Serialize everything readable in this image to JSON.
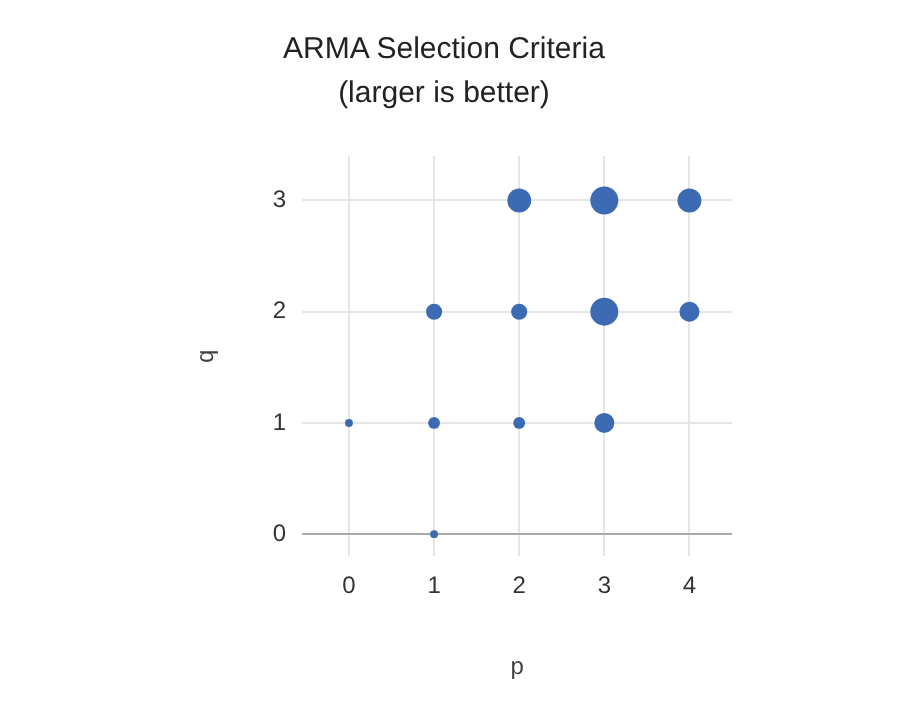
{
  "chart_data": {
    "type": "bubble",
    "title": "ARMA Selection Criteria",
    "subtitle": "(larger is better)",
    "xlabel": "p",
    "ylabel": "q",
    "series": [
      {
        "color": "#3d6bb3",
        "x": [
          0,
          1,
          1,
          1,
          2,
          2,
          2,
          3,
          3,
          3,
          4,
          4
        ],
        "values": [
          1,
          0,
          1,
          2,
          1,
          2,
          3,
          1,
          2,
          3,
          2,
          3
        ],
        "sizes": [
          0.08,
          0.08,
          0.18,
          0.33,
          0.18,
          0.33,
          0.73,
          0.51,
          1,
          1,
          0.51,
          0.73
        ]
      }
    ],
    "xlim": [
      -0.55,
      4.5
    ],
    "xticks": [
      0,
      1,
      2,
      3,
      4
    ],
    "ylim": [
      -0.2,
      3.4
    ],
    "yticks": [
      0,
      1,
      2,
      3
    ],
    "grid": true,
    "legend": false
  }
}
